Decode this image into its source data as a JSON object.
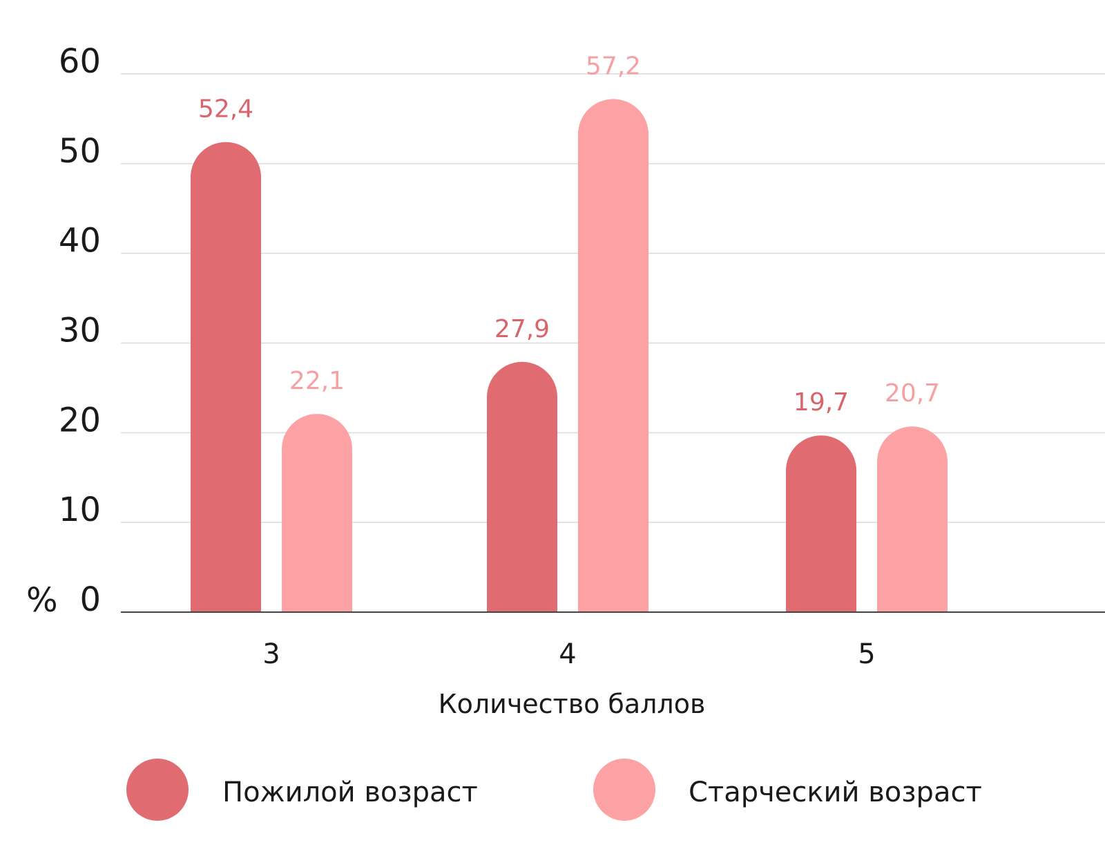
{
  "chart_data": {
    "type": "bar",
    "categories": [
      "3",
      "4",
      "5"
    ],
    "series": [
      {
        "name": "Пожилой возраст",
        "values": [
          52.4,
          27.9,
          19.7
        ],
        "labels": [
          "52,4",
          "27,9",
          "19,7"
        ],
        "color": "#e06b70",
        "label_color": "#d9646b"
      },
      {
        "name": "Старческий возраст",
        "values": [
          22.1,
          57.2,
          20.7
        ],
        "labels": [
          "22,1",
          "57,2",
          "20,7"
        ],
        "color": "#fca2a4",
        "label_color": "#f5a0a3"
      }
    ],
    "xlabel": "Количество баллов",
    "ylabel": "%",
    "ylim": [
      0,
      60
    ],
    "yticks": [
      "0",
      "10",
      "20",
      "30",
      "40",
      "50",
      "60"
    ],
    "grid": true,
    "legend_position": "bottom"
  }
}
